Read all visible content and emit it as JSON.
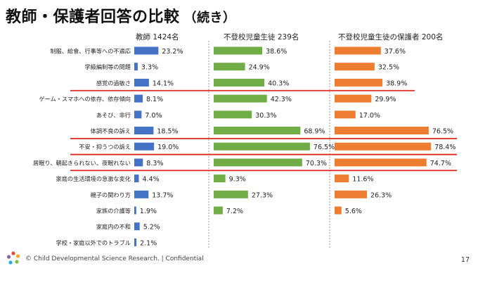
{
  "title": "教師・保護者回答の比較",
  "title_suffix": "（続き）",
  "footer": "© Child Developmental Science Research. | Confidential",
  "page_number": "17",
  "colors": {
    "teacher": "#4472c4",
    "student": "#70ad47",
    "guardian": "#ed7d31",
    "highlight": "#e0281e"
  },
  "chart_data": {
    "type": "bar",
    "orientation": "horizontal",
    "categories": [
      "制服、給食、行事等への不適応",
      "学級編制等の問題",
      "感覚の過敏さ",
      "ゲーム・スマホへの依存、依存傾向",
      "あそび、非行",
      "体調不良の訴え",
      "不安・抑うつの訴え",
      "居眠り、朝起きられない、夜眠れない",
      "家庭の生活環境の急激な変化",
      "親子の関わり方",
      "家族の介護等",
      "家庭内の不和",
      "学校・家庭以外でのトラブル"
    ],
    "series": [
      {
        "name": "教師 1424名",
        "unit": "%",
        "values": [
          23.2,
          3.3,
          14.1,
          8.1,
          7.0,
          18.5,
          19.0,
          8.3,
          4.4,
          13.7,
          1.9,
          5.2,
          2.1
        ]
      },
      {
        "name": "不登校児童生徒 239名",
        "unit": "%",
        "values": [
          38.6,
          24.9,
          40.3,
          42.3,
          30.3,
          68.9,
          76.5,
          70.3,
          9.3,
          27.3,
          7.2,
          null,
          null
        ]
      },
      {
        "name": "不登校児童生徒の保護者 200名",
        "unit": "%",
        "values": [
          37.6,
          32.5,
          38.9,
          29.9,
          17.0,
          76.5,
          78.4,
          74.7,
          11.6,
          26.3,
          5.6,
          null,
          null
        ]
      }
    ],
    "highlighted_rows": [
      "感覚の過敏さ",
      "体調不良の訴え",
      "不安・抑うつの訴え",
      "居眠り、朝起きられない、夜眠れない"
    ],
    "xlim": [
      0,
      100
    ]
  }
}
